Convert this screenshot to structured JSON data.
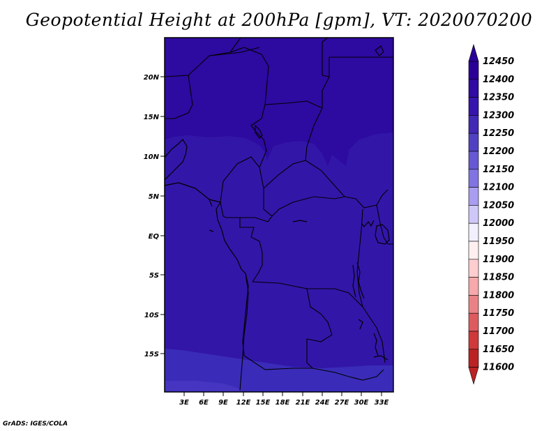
{
  "title": "Geopotential Height at 200hPa [gpm], VT: 2020070200",
  "footer": "GrADS: IGES/COLA",
  "map": {
    "lat_labels": [
      "20N",
      "15N",
      "10N",
      "5N",
      "EQ",
      "5S",
      "10S",
      "15S"
    ],
    "lon_labels": [
      "3E",
      "6E",
      "9E",
      "12E",
      "15E",
      "18E",
      "21E",
      "24E",
      "27E",
      "30E",
      "33E"
    ],
    "field_colors": {
      "north": "#2d0aa0",
      "central": "#3216a8",
      "south": "#3a2cb8"
    }
  },
  "colorbar": {
    "levels": [
      "12450",
      "12400",
      "12350",
      "12300",
      "12250",
      "12200",
      "12150",
      "12100",
      "12050",
      "12000",
      "11950",
      "11900",
      "11850",
      "11800",
      "11750",
      "11700",
      "11650",
      "11600"
    ],
    "colors": [
      "#2a0097",
      "#2f0aa3",
      "#3614ad",
      "#4128b5",
      "#5041c3",
      "#6658d2",
      "#8173e2",
      "#a89df0",
      "#cdc8f8",
      "#f2f0fe",
      "#ffeff0",
      "#fdcdcf",
      "#f6a8ab",
      "#e98286",
      "#dd5b5f",
      "#cf393a",
      "#bb2224"
    ]
  }
}
